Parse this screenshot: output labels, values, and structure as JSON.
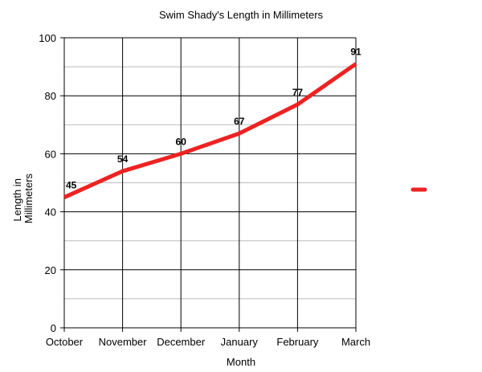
{
  "chart_data": {
    "type": "line",
    "title": "Swim Shady's Length in Millimeters",
    "xlabel": "Month",
    "ylabel": "Length in Millimeters",
    "ylabel_lines": [
      "Length in",
      "Millimeters"
    ],
    "categories": [
      "October",
      "November",
      "December",
      "January",
      "February",
      "March"
    ],
    "series": [
      {
        "values": [
          45,
          54,
          60,
          67,
          77,
          91
        ],
        "color": "#ee2222"
      }
    ],
    "data_labels": [
      "45",
      "54",
      "60",
      "67",
      "77",
      "91"
    ],
    "ylim": [
      0,
      100
    ],
    "yticks": [
      0,
      20,
      40,
      60,
      80,
      100
    ],
    "ytick_labels": [
      "0",
      "20",
      "40",
      "60",
      "80",
      "100"
    ],
    "minor_grid_step": 10,
    "grid": true,
    "legend_position": "right",
    "colors": {
      "line": "#ee2222",
      "major_grid": "#000000",
      "minor_grid": "#bbbbbb"
    }
  }
}
